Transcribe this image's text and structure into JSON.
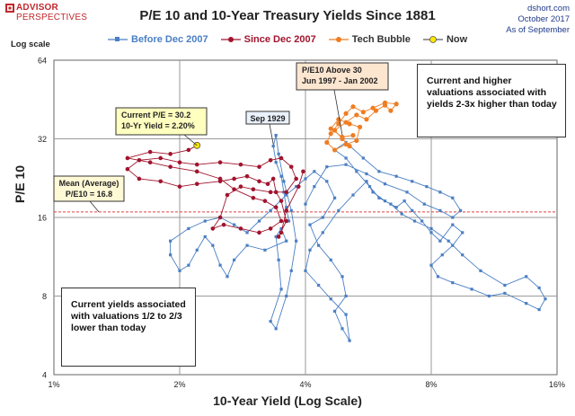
{
  "brand": {
    "name": "ADVISOR",
    "sub": "PERSPECTIVES"
  },
  "header": {
    "title": "P/E 10 and 10-Year Treasury Yields Since 1881",
    "source": "dshort.com",
    "date": "October 2017",
    "asof": "As of September"
  },
  "colors": {
    "before": "#4a7fc4",
    "since": "#a0142d",
    "tech": "#ef7d22",
    "now": "#ffe600",
    "grid": "#9a9a9a",
    "mean": "#e04040"
  },
  "chart_data": {
    "type": "scatter",
    "title": "P/E 10 and 10-Year Treasury Yields Since 1881",
    "xlabel": "10-Year Yield (Log Scale)",
    "ylabel": "P/E 10",
    "y_scale_note": "Log scale",
    "x_scale": "log",
    "y_scale": "log",
    "xlim": [
      0.01,
      0.16
    ],
    "ylim": [
      4,
      64
    ],
    "x_ticks": [
      {
        "v": 0.01,
        "label": "1%"
      },
      {
        "v": 0.02,
        "label": "2%"
      },
      {
        "v": 0.04,
        "label": "4%"
      },
      {
        "v": 0.08,
        "label": "8%"
      },
      {
        "v": 0.16,
        "label": "16%"
      }
    ],
    "y_ticks": [
      {
        "v": 4,
        "label": "4"
      },
      {
        "v": 8,
        "label": "8"
      },
      {
        "v": 16,
        "label": "16"
      },
      {
        "v": 32,
        "label": "32"
      },
      {
        "v": 64,
        "label": "64"
      }
    ],
    "legend": [
      "Before Dec 2007",
      "Since Dec 2007",
      "Tech Bubble",
      "Now"
    ],
    "legend_position": "top",
    "mean_pe10": 16.8,
    "series": [
      {
        "name": "Before Dec 2007",
        "style": "line-markers",
        "points": [
          [
            0.0365,
            15.5
          ],
          [
            0.036,
            17.5
          ],
          [
            0.0355,
            20.0
          ],
          [
            0.035,
            23.0
          ],
          [
            0.034,
            26.0
          ],
          [
            0.0335,
            30.0
          ],
          [
            0.034,
            33.0
          ],
          [
            0.0345,
            28.0
          ],
          [
            0.0355,
            22.0
          ],
          [
            0.037,
            17.0
          ],
          [
            0.038,
            13.0
          ],
          [
            0.037,
            10.0
          ],
          [
            0.036,
            8.0
          ],
          [
            0.034,
            6.0
          ],
          [
            0.033,
            6.4
          ],
          [
            0.035,
            8.5
          ],
          [
            0.0345,
            11.0
          ],
          [
            0.034,
            13.5
          ],
          [
            0.035,
            14.5
          ],
          [
            0.036,
            13.0
          ],
          [
            0.032,
            12.0
          ],
          [
            0.029,
            12.5
          ],
          [
            0.027,
            11.0
          ],
          [
            0.026,
            9.5
          ],
          [
            0.025,
            10.5
          ],
          [
            0.024,
            12.5
          ],
          [
            0.023,
            13.5
          ],
          [
            0.022,
            12.0
          ],
          [
            0.021,
            10.5
          ],
          [
            0.02,
            10.0
          ],
          [
            0.019,
            11.5
          ],
          [
            0.019,
            13.0
          ],
          [
            0.021,
            14.5
          ],
          [
            0.023,
            15.5
          ],
          [
            0.025,
            16.0
          ],
          [
            0.027,
            15.0
          ],
          [
            0.029,
            14.0
          ],
          [
            0.031,
            15.5
          ],
          [
            0.033,
            17.0
          ],
          [
            0.036,
            19.5
          ],
          [
            0.038,
            21.0
          ],
          [
            0.04,
            22.5
          ],
          [
            0.042,
            24.0
          ],
          [
            0.045,
            22.0
          ],
          [
            0.047,
            19.0
          ],
          [
            0.044,
            16.0
          ],
          [
            0.041,
            15.0
          ],
          [
            0.043,
            12.5
          ],
          [
            0.046,
            11.0
          ],
          [
            0.049,
            9.5
          ],
          [
            0.05,
            8.0
          ],
          [
            0.047,
            7.0
          ],
          [
            0.049,
            6.0
          ],
          [
            0.051,
            5.4
          ],
          [
            0.05,
            6.8
          ],
          [
            0.046,
            7.8
          ],
          [
            0.043,
            8.8
          ],
          [
            0.04,
            10.0
          ],
          [
            0.041,
            12.0
          ],
          [
            0.044,
            14.0
          ],
          [
            0.048,
            17.0
          ],
          [
            0.052,
            19.5
          ],
          [
            0.056,
            22.0
          ],
          [
            0.058,
            20.0
          ],
          [
            0.062,
            18.5
          ],
          [
            0.066,
            17.5
          ],
          [
            0.069,
            18.5
          ],
          [
            0.072,
            17.0
          ],
          [
            0.076,
            15.5
          ],
          [
            0.08,
            14.0
          ],
          [
            0.084,
            13.0
          ],
          [
            0.09,
            15.0
          ],
          [
            0.095,
            14.0
          ],
          [
            0.09,
            12.5
          ],
          [
            0.085,
            11.5
          ],
          [
            0.08,
            10.5
          ],
          [
            0.083,
            9.5
          ],
          [
            0.09,
            9.0
          ],
          [
            0.1,
            8.5
          ],
          [
            0.11,
            8.0
          ],
          [
            0.12,
            8.2
          ],
          [
            0.135,
            7.5
          ],
          [
            0.145,
            7.1
          ],
          [
            0.15,
            7.8
          ],
          [
            0.145,
            8.6
          ],
          [
            0.135,
            9.5
          ],
          [
            0.12,
            8.8
          ],
          [
            0.105,
            10.0
          ],
          [
            0.095,
            11.5
          ],
          [
            0.088,
            13.0
          ],
          [
            0.08,
            14.5
          ],
          [
            0.073,
            15.5
          ],
          [
            0.068,
            16.5
          ],
          [
            0.064,
            18.0
          ],
          [
            0.06,
            19.0
          ],
          [
            0.057,
            21.0
          ],
          [
            0.053,
            24.0
          ],
          [
            0.05,
            27.0
          ],
          [
            0.047,
            29.0
          ],
          [
            0.05,
            31.0
          ],
          [
            0.055,
            27.0
          ],
          [
            0.06,
            24.0
          ],
          [
            0.066,
            23.0
          ],
          [
            0.072,
            22.0
          ],
          [
            0.078,
            21.0
          ],
          [
            0.084,
            20.0
          ],
          [
            0.09,
            19.0
          ],
          [
            0.094,
            17.0
          ],
          [
            0.09,
            16.0
          ],
          [
            0.084,
            17.0
          ],
          [
            0.077,
            18.0
          ],
          [
            0.07,
            20.0
          ],
          [
            0.062,
            21.5
          ],
          [
            0.056,
            23.5
          ],
          [
            0.05,
            25.5
          ],
          [
            0.045,
            25.0
          ],
          [
            0.042,
            21.0
          ],
          [
            0.04,
            18.0
          ]
        ]
      },
      {
        "name": "Since Dec 2007",
        "style": "line-markers",
        "points": [
          [
            0.0395,
            24.0
          ],
          [
            0.0385,
            21.0
          ],
          [
            0.036,
            17.0
          ],
          [
            0.035,
            14.0
          ],
          [
            0.0345,
            13.5
          ],
          [
            0.036,
            15.5
          ],
          [
            0.035,
            18.5
          ],
          [
            0.034,
            20.0
          ],
          [
            0.0335,
            22.5
          ],
          [
            0.0325,
            21.5
          ],
          [
            0.031,
            22.0
          ],
          [
            0.029,
            23.0
          ],
          [
            0.027,
            22.5
          ],
          [
            0.025,
            22.0
          ],
          [
            0.022,
            21.5
          ],
          [
            0.02,
            21.0
          ],
          [
            0.018,
            22.0
          ],
          [
            0.016,
            22.5
          ],
          [
            0.015,
            24.5
          ],
          [
            0.016,
            26.5
          ],
          [
            0.018,
            27.0
          ],
          [
            0.02,
            26.0
          ],
          [
            0.022,
            25.5
          ],
          [
            0.025,
            26.0
          ],
          [
            0.028,
            25.5
          ],
          [
            0.031,
            25.0
          ],
          [
            0.033,
            26.5
          ],
          [
            0.035,
            27.0
          ],
          [
            0.037,
            25.0
          ],
          [
            0.038,
            22.5
          ],
          [
            0.036,
            20.0
          ],
          [
            0.033,
            20.0
          ],
          [
            0.03,
            20.5
          ],
          [
            0.028,
            21.0
          ],
          [
            0.026,
            19.5
          ],
          [
            0.025,
            16.0
          ],
          [
            0.024,
            14.5
          ],
          [
            0.0255,
            15.0
          ],
          [
            0.028,
            14.5
          ],
          [
            0.031,
            14.0
          ],
          [
            0.033,
            14.5
          ],
          [
            0.035,
            15.5
          ],
          [
            0.034,
            17.5
          ],
          [
            0.032,
            18.5
          ],
          [
            0.03,
            19.0
          ],
          [
            0.027,
            20.5
          ],
          [
            0.025,
            22.5
          ],
          [
            0.022,
            24.0
          ],
          [
            0.019,
            25.0
          ],
          [
            0.017,
            26.0
          ],
          [
            0.015,
            27.0
          ],
          [
            0.017,
            28.5
          ],
          [
            0.019,
            28.0
          ],
          [
            0.021,
            29.0
          ],
          [
            0.022,
            30.2
          ]
        ]
      },
      {
        "name": "Tech Bubble",
        "style": "line-markers",
        "points": [
          [
            0.051,
            30.0
          ],
          [
            0.049,
            32.0
          ],
          [
            0.047,
            34.5
          ],
          [
            0.05,
            37.0
          ],
          [
            0.053,
            39.5
          ],
          [
            0.056,
            38.0
          ],
          [
            0.059,
            41.0
          ],
          [
            0.062,
            43.0
          ],
          [
            0.064,
            41.0
          ],
          [
            0.066,
            43.5
          ],
          [
            0.062,
            44.0
          ],
          [
            0.058,
            42.0
          ],
          [
            0.055,
            40.5
          ],
          [
            0.052,
            42.5
          ],
          [
            0.05,
            40.0
          ],
          [
            0.048,
            36.5
          ],
          [
            0.046,
            33.5
          ],
          [
            0.045,
            31.0
          ],
          [
            0.047,
            29.0
          ],
          [
            0.05,
            30.5
          ],
          [
            0.053,
            31.5
          ],
          [
            0.054,
            35.5
          ],
          [
            0.051,
            36.5
          ],
          [
            0.048,
            38.0
          ],
          [
            0.046,
            35.0
          ],
          [
            0.049,
            32.5
          ],
          [
            0.052,
            33.0
          ]
        ]
      },
      {
        "name": "Now",
        "style": "marker",
        "points": [
          [
            0.022,
            30.2
          ]
        ]
      }
    ],
    "annotations": [
      {
        "id": "now",
        "lines": [
          "Current P/E = 30.2",
          "10-Yr Yield = 2.20%"
        ]
      },
      {
        "id": "sep1929",
        "lines": [
          "Sep 1929"
        ]
      },
      {
        "id": "tech",
        "lines": [
          "P/E10 Above 30",
          "Jun 1997 - Jan 2002"
        ]
      },
      {
        "id": "mean",
        "lines": [
          "Mean (Average)",
          "P/E10 = 16.8"
        ]
      },
      {
        "id": "upper_note",
        "lines": [
          "Current and higher",
          "valuations associated with",
          "yields 2-3x higher than today"
        ]
      },
      {
        "id": "lower_note",
        "lines": [
          "Current yields associated",
          "with valuations 1/2 to 2/3",
          "lower than today"
        ]
      }
    ]
  }
}
